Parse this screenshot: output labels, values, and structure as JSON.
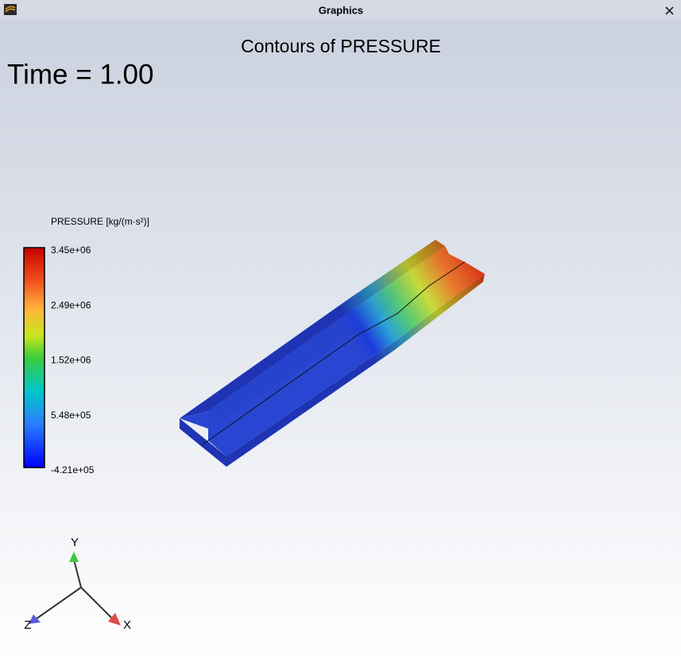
{
  "window": {
    "title": "Graphics"
  },
  "view": {
    "title": "Contours of PRESSURE",
    "time_label": "Time = 1.00"
  },
  "legend": {
    "title": "PRESSURE [kg/(m·s²)]",
    "ticks": [
      "3.45e+06",
      "2.49e+06",
      "1.52e+06",
      "5.48e+05",
      "-4.21e+05"
    ]
  },
  "axes": {
    "labels": [
      "Y",
      "Z",
      "X"
    ]
  }
}
